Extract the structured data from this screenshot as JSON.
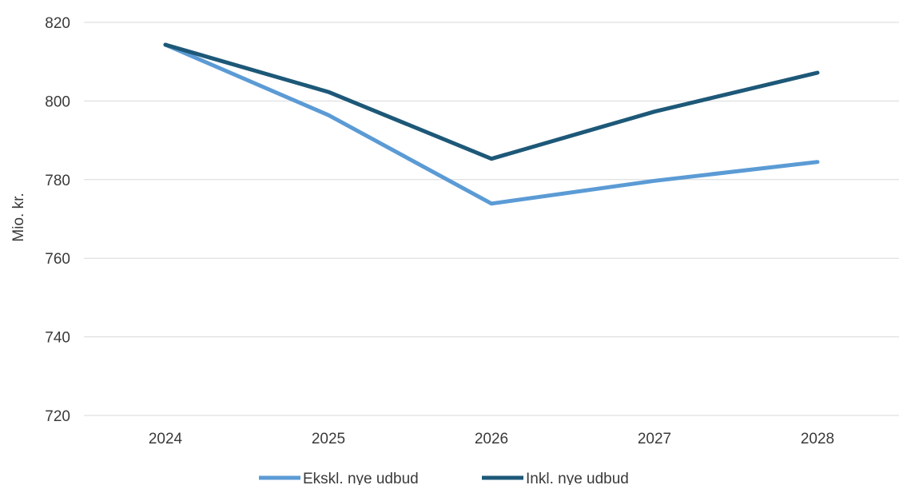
{
  "chart_data": {
    "type": "line",
    "categories": [
      "2024",
      "2025",
      "2026",
      "2027",
      "2028"
    ],
    "series": [
      {
        "name": "Ekskl. nye udbud",
        "values": [
          814.3,
          796.4,
          773.9,
          779.7,
          784.5
        ],
        "color": "#5b9bd5"
      },
      {
        "name": "Inkl. nye udbud",
        "values": [
          814.3,
          802.3,
          785.3,
          797.3,
          807.2
        ],
        "color": "#1d5878"
      }
    ],
    "title": "",
    "xlabel": "",
    "ylabel": "Mio. kr.",
    "ylim": [
      720,
      820
    ],
    "yticks": [
      "720",
      "740",
      "760",
      "780",
      "800",
      "820"
    ],
    "grid": "horizontal",
    "legend": "bottom"
  }
}
